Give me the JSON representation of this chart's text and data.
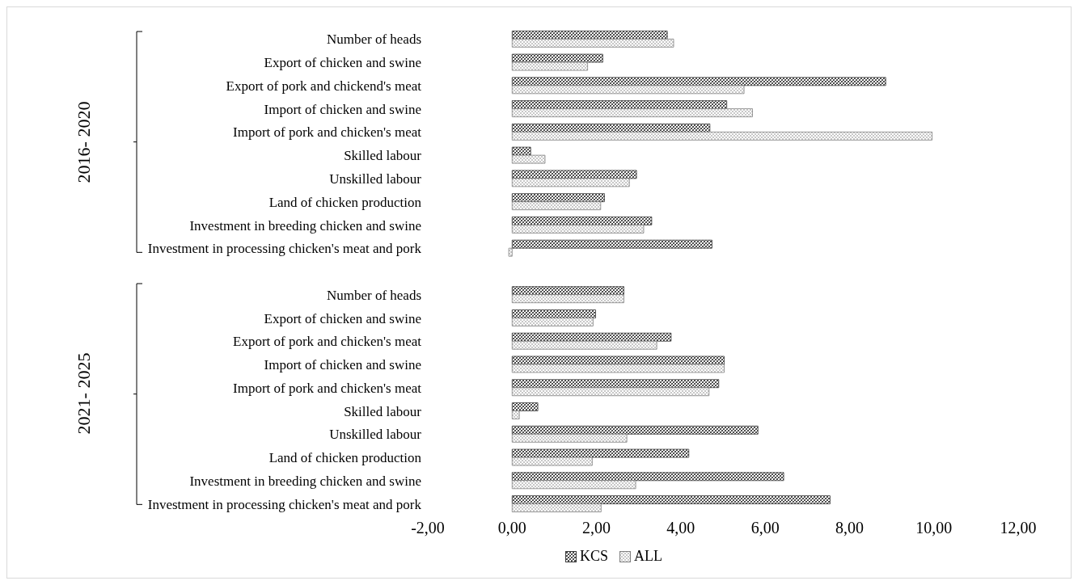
{
  "chart_data": {
    "type": "bar",
    "orientation": "horizontal",
    "categories": [
      "Number of heads",
      "Export of chicken and swine",
      "Export of pork and chickend's meat",
      "Import of chicken and swine",
      "Import of pork and chicken's meat",
      "Skilled labour",
      "Unskilled labour",
      "Land of chicken production",
      "Investment in breeding chicken and swine",
      "Investment in processing chicken's meat and pork",
      null,
      "Number of heads",
      "Export of chicken and swine",
      "Export of pork and chicken's meat",
      "Import of chicken and swine",
      "Import of pork and chicken's meat",
      "Skilled labour",
      "Unskilled labour",
      "Land of chicken production",
      "Investment in breeding chicken and swine",
      "Investment in processing chicken's meat and pork"
    ],
    "series": [
      {
        "name": "KCS",
        "color": "#3a3a3a",
        "values": [
          3.68,
          2.15,
          8.86,
          5.09,
          4.69,
          0.44,
          2.95,
          2.19,
          3.31,
          4.74,
          null,
          2.65,
          1.98,
          3.77,
          5.03,
          4.9,
          0.61,
          5.83,
          4.19,
          6.44,
          7.54
        ]
      },
      {
        "name": "ALL",
        "color": "#808080",
        "values": [
          3.83,
          1.79,
          5.5,
          5.7,
          9.96,
          0.78,
          2.78,
          2.1,
          3.12,
          -0.08,
          null,
          2.65,
          1.92,
          3.43,
          5.03,
          4.67,
          0.17,
          2.72,
          1.9,
          2.93,
          2.11
        ]
      }
    ],
    "xlim": [
      -2,
      12
    ],
    "xticks": [
      {
        "value": -2,
        "label": "-2,00"
      },
      {
        "value": 0,
        "label": "0,00"
      },
      {
        "value": 2,
        "label": "2,00"
      },
      {
        "value": 4,
        "label": "4,00"
      },
      {
        "value": 6,
        "label": "6,00"
      },
      {
        "value": 8,
        "label": "8,00"
      },
      {
        "value": 10,
        "label": "10,00"
      },
      {
        "value": 12,
        "label": "12,00"
      }
    ],
    "annotations": [
      "2016- 2020",
      "2021- 2025"
    ],
    "grid": false,
    "legend": "bottom"
  }
}
